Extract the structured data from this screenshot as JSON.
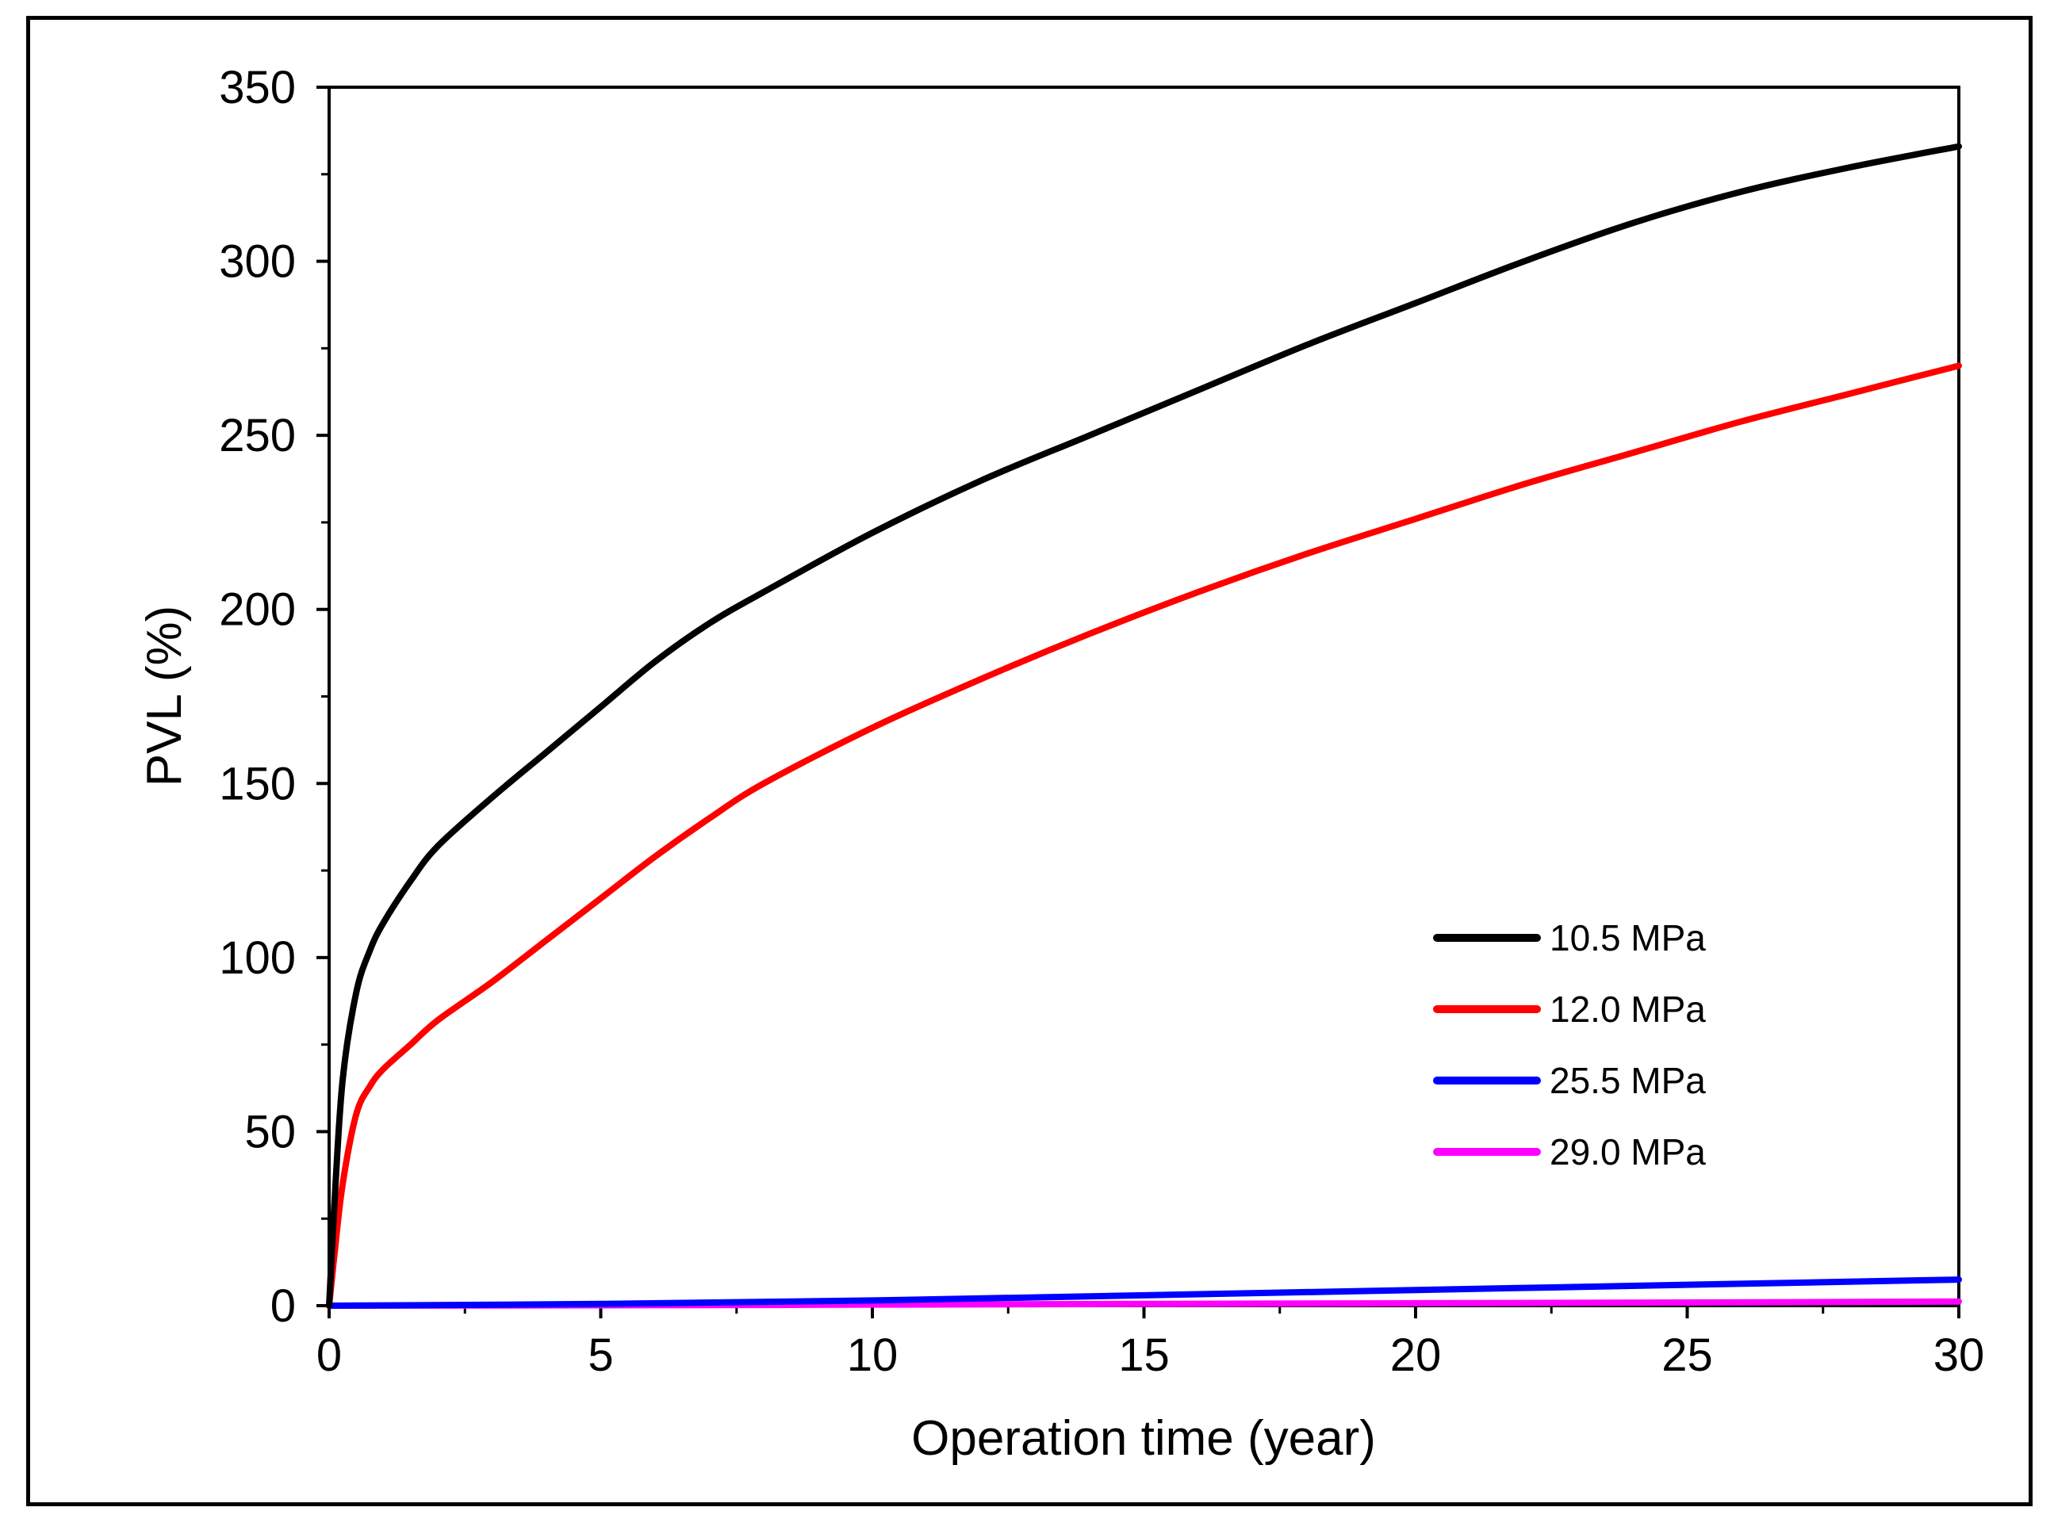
{
  "chart_data": {
    "type": "line",
    "title": "",
    "xlabel": "Operation time (year)",
    "ylabel": "PVL (%)",
    "xlim": [
      0,
      30
    ],
    "ylim": [
      0,
      350
    ],
    "x_ticks": [
      0,
      5,
      10,
      15,
      20,
      25,
      30
    ],
    "y_ticks": [
      0,
      50,
      100,
      150,
      200,
      250,
      300,
      350
    ],
    "x_tick_labels": [
      "0",
      "5",
      "10",
      "15",
      "20",
      "25",
      "30"
    ],
    "y_tick_labels": [
      "0",
      "50",
      "100",
      "150",
      "200",
      "250",
      "300",
      "350"
    ],
    "grid": false,
    "legend_position": "center-right",
    "series": [
      {
        "name": "10.5 MPa",
        "color": "#000000",
        "x": [
          0,
          0.1,
          0.25,
          0.5,
          0.75,
          1,
          1.5,
          2,
          3,
          4,
          5,
          6,
          7,
          8,
          10,
          12,
          14,
          16,
          18,
          20,
          22,
          24,
          26,
          28,
          30
        ],
        "y": [
          0,
          30,
          65,
          90,
          102,
          110,
          122,
          132,
          146,
          159,
          172,
          185,
          196,
          205,
          222,
          237,
          250,
          263,
          276,
          288,
          300,
          311,
          320,
          327,
          333
        ]
      },
      {
        "name": "12.0 MPa",
        "color": "#ff0000",
        "x": [
          0,
          0.1,
          0.25,
          0.5,
          0.75,
          1,
          1.5,
          2,
          3,
          4,
          5,
          6,
          7,
          8,
          10,
          12,
          14,
          16,
          18,
          20,
          22,
          24,
          26,
          28,
          30
        ],
        "y": [
          0,
          15,
          35,
          55,
          63,
          68,
          75,
          82,
          93,
          105,
          117,
          129,
          140,
          150,
          166,
          180,
          193,
          205,
          216,
          226,
          236,
          245,
          254,
          262,
          270
        ]
      },
      {
        "name": "25.5 MPa",
        "color": "#0000ff",
        "x": [
          0,
          5,
          10,
          15,
          20,
          25,
          30
        ],
        "y": [
          0,
          0.5,
          1.5,
          3,
          4.5,
          6,
          7.5
        ]
      },
      {
        "name": "29.0 MPa",
        "color": "#ff00ff",
        "x": [
          0,
          5,
          10,
          15,
          20,
          25,
          30
        ],
        "y": [
          0,
          0.1,
          0.3,
          0.5,
          0.7,
          0.9,
          1.2
        ]
      }
    ]
  }
}
